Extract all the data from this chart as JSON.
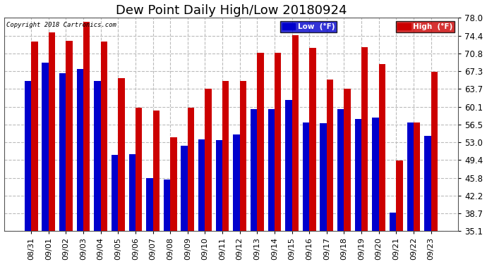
{
  "title": "Dew Point Daily High/Low 20180924",
  "copyright": "Copyright 2018 Cartronics.com",
  "yticks": [
    35.1,
    38.7,
    42.2,
    45.8,
    49.4,
    53.0,
    56.5,
    60.1,
    63.7,
    67.3,
    70.8,
    74.4,
    78.0
  ],
  "ylim": [
    35.1,
    78.0
  ],
  "dates": [
    "08/31",
    "09/01",
    "09/02",
    "09/03",
    "09/04",
    "09/05",
    "09/06",
    "09/07",
    "09/08",
    "09/09",
    "09/10",
    "09/11",
    "09/12",
    "09/13",
    "09/14",
    "09/15",
    "09/16",
    "09/17",
    "09/18",
    "09/19",
    "09/20",
    "09/21",
    "09/22",
    "09/23"
  ],
  "low": [
    65.3,
    68.9,
    66.9,
    67.7,
    65.3,
    50.4,
    50.5,
    45.7,
    45.5,
    52.2,
    53.5,
    53.4,
    54.5,
    59.6,
    59.6,
    61.5,
    57.0,
    56.8,
    59.6,
    57.7,
    57.9,
    38.8,
    56.9,
    54.3
  ],
  "high": [
    73.2,
    75.0,
    73.4,
    77.2,
    73.2,
    65.8,
    59.9,
    59.4,
    54.0,
    59.9,
    63.7,
    65.3,
    65.3,
    70.9,
    70.9,
    74.5,
    72.0,
    65.5,
    63.7,
    72.1,
    68.7,
    49.3,
    57.0,
    67.1
  ],
  "low_color": "#0000cc",
  "high_color": "#cc0000",
  "background_color": "#ffffff",
  "grid_color": "#bbbbbb",
  "title_fontsize": 13,
  "tick_fontsize": 8.5,
  "bar_width": 0.38
}
